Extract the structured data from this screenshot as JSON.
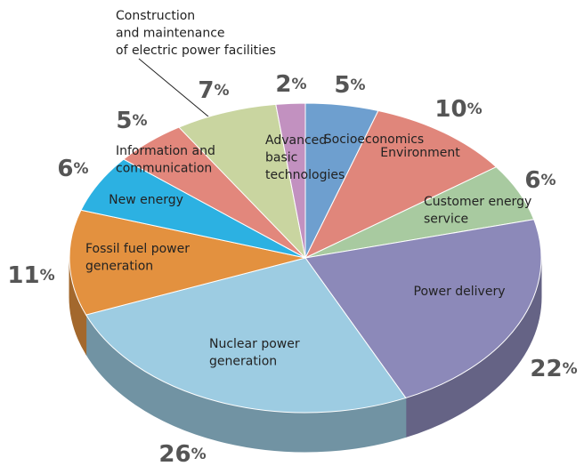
{
  "chart_data": {
    "type": "pie",
    "categories": [
      "Socioeconomics",
      "Environment",
      "Customer energy service",
      "Power delivery",
      "Nuclear power generation",
      "Fossil fuel power generation",
      "New energy",
      "Information and communication",
      "Construction and maintenance of electric power facilities",
      "Advanced basic technologies"
    ],
    "values": [
      5,
      10,
      6,
      22,
      26,
      11,
      6,
      5,
      7,
      2
    ],
    "value_labels": [
      "5%",
      "10%",
      "6%",
      "22%",
      "26%",
      "11%",
      "6%",
      "5%",
      "7%",
      "2%"
    ],
    "colors": [
      "#6e9fcf",
      "#e0867b",
      "#a8caa0",
      "#8c89b9",
      "#9dcce2",
      "#e3913f",
      "#2cb1e2",
      "#e2877c",
      "#c9d5a0",
      "#c291c0"
    ]
  }
}
